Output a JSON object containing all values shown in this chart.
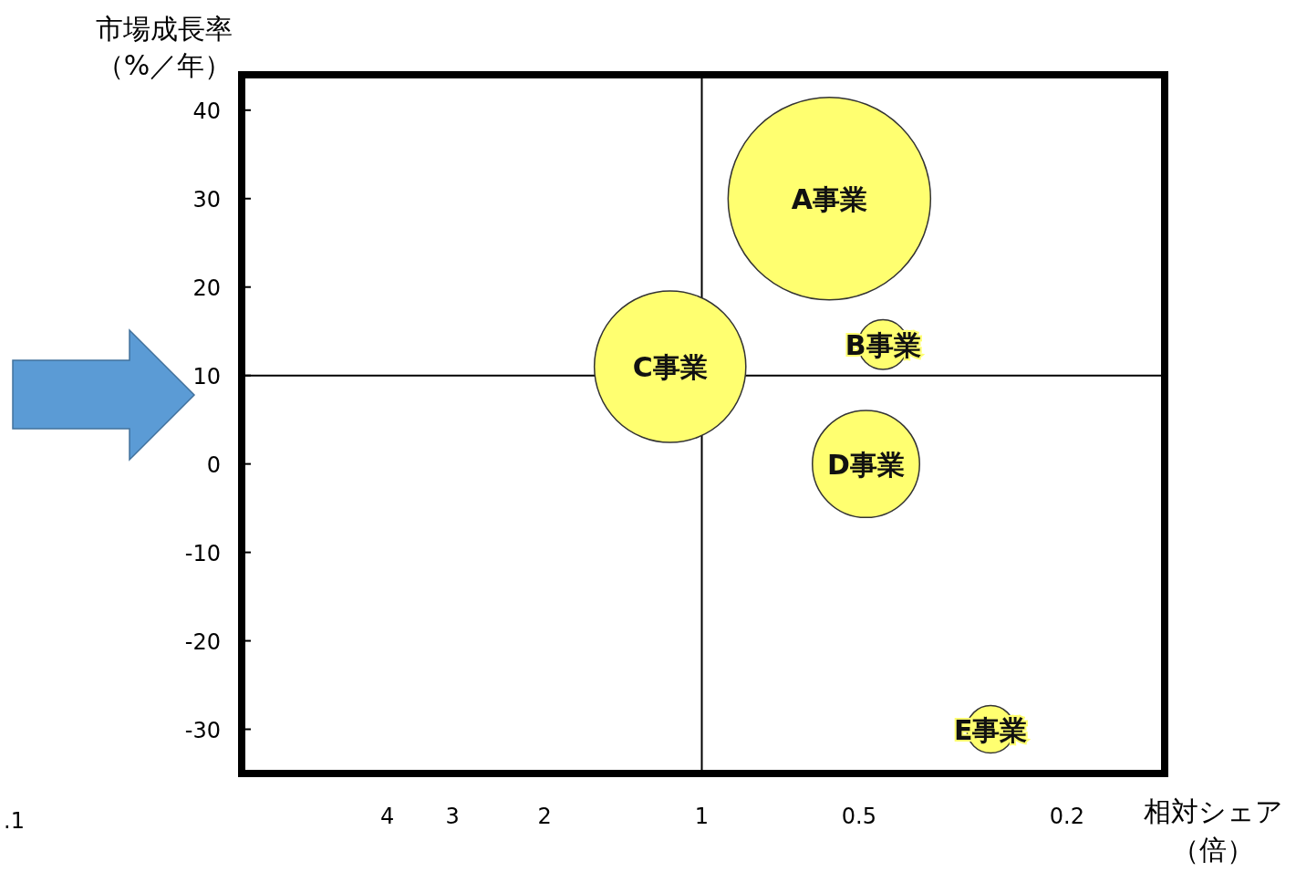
{
  "chart_data": {
    "type": "bubble",
    "xlabel": "相対シェア（倍）",
    "ylabel": "市場成長率（%／年）",
    "log": "x",
    "xlim": [
      7.6,
      0.13
    ],
    "xticks": [
      4,
      3,
      2,
      1,
      0.5,
      0.2
    ],
    "ylim": [
      -35,
      44
    ],
    "yticks": [
      40,
      30,
      20,
      10,
      0,
      -10,
      -20,
      -30
    ],
    "ref_lines": [
      {
        "axis": "y",
        "value": 10,
        "color": "#000000"
      },
      {
        "axis": "x",
        "value": 1,
        "color": "#000000"
      }
    ],
    "annotations": [
      ".1"
    ],
    "series": [
      {
        "name": "A事業",
        "color": "#ffff70",
        "x": [
          0.57
        ],
        "values": [
          30
        ],
        "sizes": [
          1
        ]
      },
      {
        "name": "B事業",
        "color": "#ffff70",
        "x": [
          0.45
        ],
        "values": [
          13.5
        ],
        "sizes": [
          0.06
        ]
      },
      {
        "name": "C事業",
        "color": "#ffff70",
        "x": [
          1.15
        ],
        "values": [
          11
        ],
        "sizes": [
          0.56
        ]
      },
      {
        "name": "D事業",
        "color": "#ffff70",
        "x": [
          0.485
        ],
        "values": [
          0
        ],
        "sizes": [
          0.28
        ]
      },
      {
        "name": "E事業",
        "color": "#ffff70",
        "x": [
          0.28
        ],
        "values": [
          -30
        ],
        "sizes": [
          0.055
        ]
      }
    ]
  }
}
